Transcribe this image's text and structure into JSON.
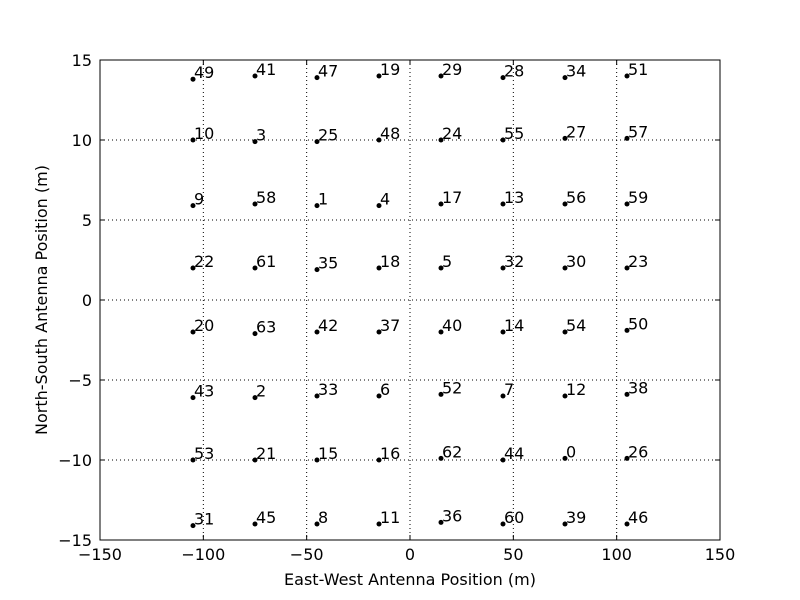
{
  "chart_data": {
    "type": "scatter",
    "title": "",
    "xlabel": "East-West Antenna Position (m)",
    "ylabel": "North-South Antenna Position (m)",
    "xlim": [
      -150,
      150
    ],
    "ylim": [
      -15,
      15
    ],
    "xticks": [
      -150,
      -100,
      -50,
      0,
      50,
      100,
      150
    ],
    "yticks": [
      -15,
      -10,
      -5,
      0,
      5,
      10,
      15
    ],
    "xtick_labels": [
      "−150",
      "−100",
      "−50",
      "0",
      "50",
      "100",
      "150"
    ],
    "ytick_labels": [
      "−15",
      "−10",
      "−5",
      "0",
      "5",
      "10",
      "15"
    ],
    "grid": true,
    "points": [
      {
        "label": "49",
        "x": -105,
        "y": 13.8
      },
      {
        "label": "41",
        "x": -75,
        "y": 14.0
      },
      {
        "label": "47",
        "x": -45,
        "y": 13.9
      },
      {
        "label": "19",
        "x": -15,
        "y": 14.0
      },
      {
        "label": "29",
        "x": 15,
        "y": 14.0
      },
      {
        "label": "28",
        "x": 45,
        "y": 13.9
      },
      {
        "label": "34",
        "x": 75,
        "y": 13.9
      },
      {
        "label": "51",
        "x": 105,
        "y": 14.0
      },
      {
        "label": "10",
        "x": -105,
        "y": 10.0
      },
      {
        "label": "3",
        "x": -75,
        "y": 9.9
      },
      {
        "label": "25",
        "x": -45,
        "y": 9.9
      },
      {
        "label": "48",
        "x": -15,
        "y": 10.0
      },
      {
        "label": "24",
        "x": 15,
        "y": 10.0
      },
      {
        "label": "55",
        "x": 45,
        "y": 10.0
      },
      {
        "label": "27",
        "x": 75,
        "y": 10.1
      },
      {
        "label": "57",
        "x": 105,
        "y": 10.1
      },
      {
        "label": "9",
        "x": -105,
        "y": 5.9
      },
      {
        "label": "58",
        "x": -75,
        "y": 6.0
      },
      {
        "label": "1",
        "x": -45,
        "y": 5.9
      },
      {
        "label": "4",
        "x": -15,
        "y": 5.9
      },
      {
        "label": "17",
        "x": 15,
        "y": 6.0
      },
      {
        "label": "13",
        "x": 45,
        "y": 6.0
      },
      {
        "label": "56",
        "x": 75,
        "y": 6.0
      },
      {
        "label": "59",
        "x": 105,
        "y": 6.0
      },
      {
        "label": "22",
        "x": -105,
        "y": 2.0
      },
      {
        "label": "61",
        "x": -75,
        "y": 2.0
      },
      {
        "label": "35",
        "x": -45,
        "y": 1.9
      },
      {
        "label": "18",
        "x": -15,
        "y": 2.0
      },
      {
        "label": "5",
        "x": 15,
        "y": 2.0
      },
      {
        "label": "32",
        "x": 45,
        "y": 2.0
      },
      {
        "label": "30",
        "x": 75,
        "y": 2.0
      },
      {
        "label": "23",
        "x": 105,
        "y": 2.0
      },
      {
        "label": "20",
        "x": -105,
        "y": -2.0
      },
      {
        "label": "63",
        "x": -75,
        "y": -2.1
      },
      {
        "label": "42",
        "x": -45,
        "y": -2.0
      },
      {
        "label": "37",
        "x": -15,
        "y": -2.0
      },
      {
        "label": "40",
        "x": 15,
        "y": -2.0
      },
      {
        "label": "14",
        "x": 45,
        "y": -2.0
      },
      {
        "label": "54",
        "x": 75,
        "y": -2.0
      },
      {
        "label": "50",
        "x": 105,
        "y": -1.9
      },
      {
        "label": "43",
        "x": -105,
        "y": -6.1
      },
      {
        "label": "2",
        "x": -75,
        "y": -6.1
      },
      {
        "label": "33",
        "x": -45,
        "y": -6.0
      },
      {
        "label": "6",
        "x": -15,
        "y": -6.0
      },
      {
        "label": "52",
        "x": 15,
        "y": -5.9
      },
      {
        "label": "7",
        "x": 45,
        "y": -6.0
      },
      {
        "label": "12",
        "x": 75,
        "y": -6.0
      },
      {
        "label": "38",
        "x": 105,
        "y": -5.9
      },
      {
        "label": "53",
        "x": -105,
        "y": -10.0
      },
      {
        "label": "21",
        "x": -75,
        "y": -10.0
      },
      {
        "label": "15",
        "x": -45,
        "y": -10.0
      },
      {
        "label": "16",
        "x": -15,
        "y": -10.0
      },
      {
        "label": "62",
        "x": 15,
        "y": -9.9
      },
      {
        "label": "44",
        "x": 45,
        "y": -10.0
      },
      {
        "label": "0",
        "x": 75,
        "y": -9.9
      },
      {
        "label": "26",
        "x": 105,
        "y": -9.9
      },
      {
        "label": "31",
        "x": -105,
        "y": -14.1
      },
      {
        "label": "45",
        "x": -75,
        "y": -14.0
      },
      {
        "label": "8",
        "x": -45,
        "y": -14.0
      },
      {
        "label": "11",
        "x": -15,
        "y": -14.0
      },
      {
        "label": "36",
        "x": 15,
        "y": -13.9
      },
      {
        "label": "60",
        "x": 45,
        "y": -14.0
      },
      {
        "label": "39",
        "x": 75,
        "y": -14.0
      },
      {
        "label": "46",
        "x": 105,
        "y": -14.0
      }
    ]
  }
}
